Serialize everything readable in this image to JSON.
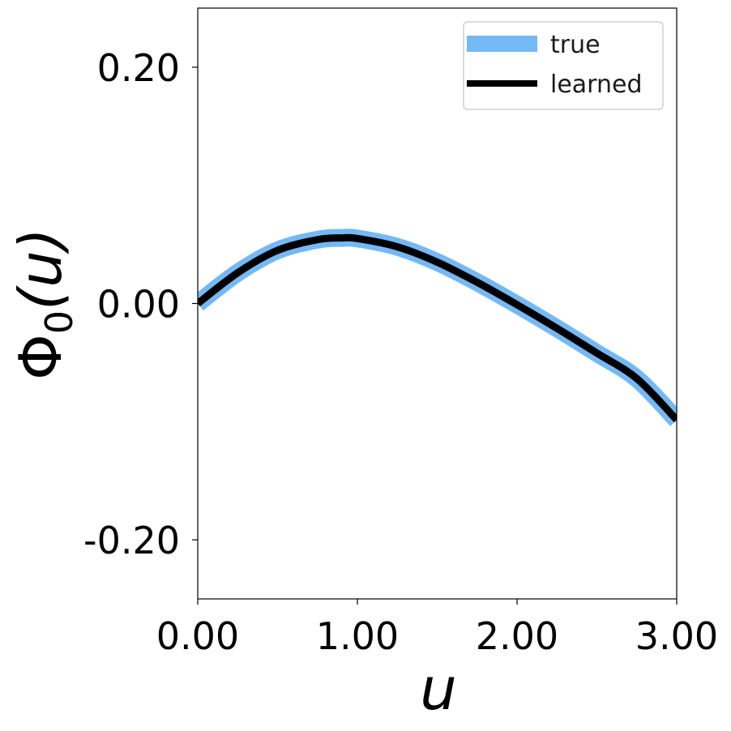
{
  "chart_data": {
    "type": "line",
    "xlabel": "u",
    "ylabel_main": "Φ",
    "ylabel_sub": "0",
    "ylabel_arg": "(u)",
    "xlim": [
      0,
      3
    ],
    "ylim": [
      -0.25,
      0.25
    ],
    "xticks": [
      0,
      1,
      2,
      3
    ],
    "xtick_labels": [
      "0.00",
      "1.00",
      "2.00",
      "3.00"
    ],
    "yticks": [
      -0.2,
      0,
      0.2
    ],
    "ytick_labels": [
      "-0.20",
      "0.00",
      "0.20"
    ],
    "grid": false,
    "legend_position": "top-right",
    "series": [
      {
        "name": "true",
        "color": "#74b9f5",
        "x": [
          0,
          0.25,
          0.5,
          0.75,
          0.9,
          1.0,
          1.25,
          1.5,
          1.75,
          2.0,
          2.25,
          2.5,
          2.75,
          3.0
        ],
        "y": [
          0.0,
          0.026,
          0.045,
          0.054,
          0.0555,
          0.055,
          0.048,
          0.035,
          0.018,
          -0.001,
          -0.021,
          -0.042,
          -0.0635,
          -0.0985
        ]
      },
      {
        "name": "learned",
        "color": "#000000",
        "x": [
          0,
          0.25,
          0.5,
          0.75,
          0.9,
          1.0,
          1.25,
          1.5,
          1.75,
          2.0,
          2.25,
          2.5,
          2.75,
          3.0
        ],
        "y": [
          0.0,
          0.026,
          0.045,
          0.054,
          0.0555,
          0.055,
          0.048,
          0.035,
          0.018,
          -0.001,
          -0.021,
          -0.042,
          -0.0635,
          -0.0985
        ]
      }
    ]
  }
}
